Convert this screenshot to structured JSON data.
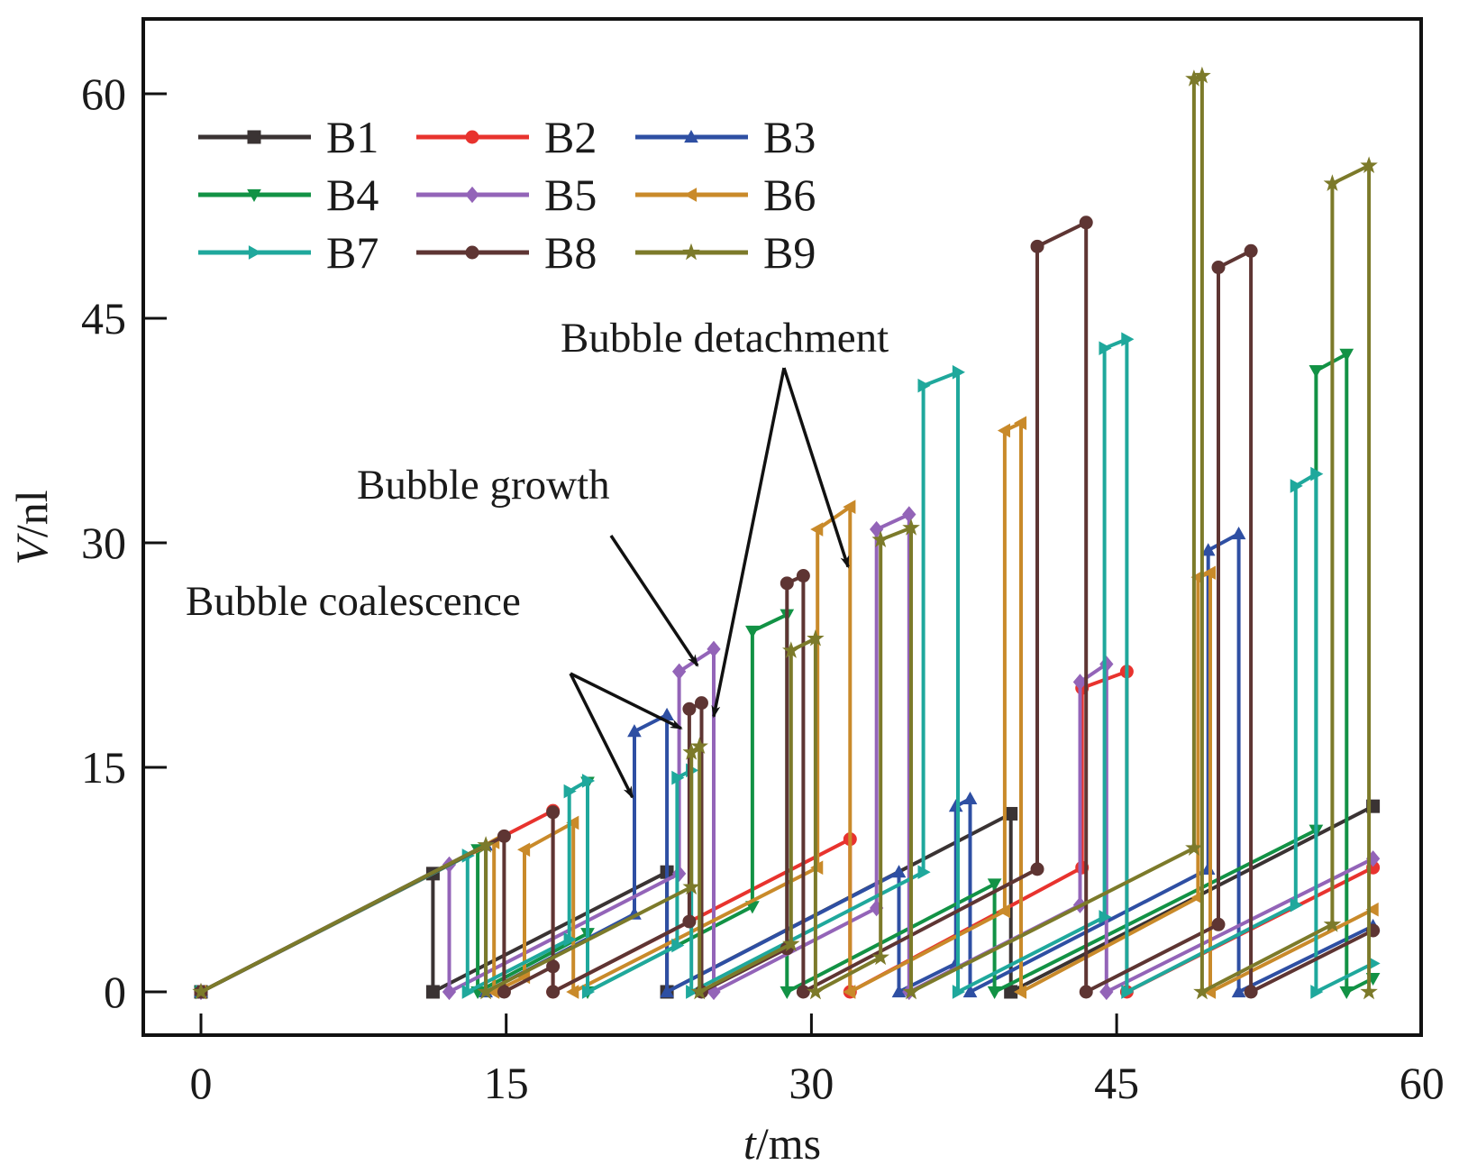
{
  "chart_data": {
    "type": "line",
    "title": "",
    "xlabel": "t/ms",
    "xlabel_parts": {
      "italic": "t",
      "rest": "/ms"
    },
    "ylabel": "V/nl",
    "ylabel_parts": {
      "italic": "V",
      "rest": "/nl"
    },
    "xlim": [
      -3,
      60
    ],
    "ylim": [
      -3,
      65
    ],
    "xticks": [
      0,
      15,
      30,
      45,
      60
    ],
    "yticks": [
      0,
      15,
      30,
      45,
      60
    ],
    "grid": false,
    "legend": {
      "placement": "top-left",
      "columns": 3
    },
    "series": [
      {
        "name": "B1",
        "color": "#3a3333",
        "marker": "square",
        "points": [
          [
            0,
            0
          ],
          [
            11.4,
            7.9
          ],
          [
            11.4,
            0
          ],
          [
            22.9,
            8.0
          ],
          [
            22.9,
            0
          ],
          [
            39.8,
            11.9
          ],
          [
            39.8,
            0
          ],
          [
            57.6,
            12.4
          ]
        ]
      },
      {
        "name": "B2",
        "color": "#e8332e",
        "marker": "circle",
        "points": [
          [
            0,
            0
          ],
          [
            17.3,
            12.1
          ],
          [
            17.3,
            0
          ],
          [
            31.9,
            10.2
          ],
          [
            31.9,
            0
          ],
          [
            43.3,
            8.3
          ],
          [
            43.3,
            20.3
          ],
          [
            45.5,
            21.4
          ],
          [
            45.5,
            0
          ],
          [
            57.6,
            8.3
          ]
        ]
      },
      {
        "name": "B3",
        "color": "#2e4fa3",
        "marker": "triangle-up",
        "points": [
          [
            0,
            0
          ],
          [
            14.0,
            9.8
          ],
          [
            14.0,
            0
          ],
          [
            21.3,
            5.2
          ],
          [
            21.3,
            17.4
          ],
          [
            22.9,
            18.5
          ],
          [
            22.9,
            0
          ],
          [
            34.3,
            8.0
          ],
          [
            34.3,
            0
          ],
          [
            37.1,
            1.9
          ],
          [
            37.1,
            12.4
          ],
          [
            37.8,
            12.9
          ],
          [
            37.8,
            0
          ],
          [
            49.5,
            8.2
          ],
          [
            49.5,
            29.5
          ],
          [
            51.0,
            30.6
          ],
          [
            51.0,
            0
          ],
          [
            57.6,
            4.4
          ]
        ]
      },
      {
        "name": "B4",
        "color": "#129245",
        "marker": "triangle-down",
        "points": [
          [
            0,
            0
          ],
          [
            13.6,
            9.5
          ],
          [
            13.6,
            0
          ],
          [
            19.0,
            3.9
          ],
          [
            19.0,
            14.0
          ],
          [
            19.0,
            0
          ],
          [
            27.1,
            5.7
          ],
          [
            27.1,
            24.1
          ],
          [
            28.8,
            25.2
          ],
          [
            28.8,
            0
          ],
          [
            39.0,
            7.2
          ],
          [
            39.0,
            0
          ],
          [
            54.8,
            10.8
          ],
          [
            54.8,
            41.5
          ],
          [
            56.3,
            42.6
          ],
          [
            56.3,
            0
          ],
          [
            57.6,
            0.9
          ]
        ]
      },
      {
        "name": "B5",
        "color": "#9364b8",
        "marker": "diamond",
        "points": [
          [
            0,
            0
          ],
          [
            12.2,
            8.5
          ],
          [
            12.2,
            0
          ],
          [
            23.5,
            7.9
          ],
          [
            23.5,
            21.4
          ],
          [
            25.2,
            22.9
          ],
          [
            25.2,
            0
          ],
          [
            33.2,
            5.6
          ],
          [
            33.2,
            30.9
          ],
          [
            34.8,
            31.9
          ],
          [
            34.8,
            0
          ],
          [
            43.2,
            5.8
          ],
          [
            43.2,
            20.7
          ],
          [
            44.5,
            21.9
          ],
          [
            44.5,
            0
          ],
          [
            57.6,
            8.9
          ]
        ]
      },
      {
        "name": "B6",
        "color": "#c98a2a",
        "marker": "left-triangle",
        "points": [
          [
            0,
            0
          ],
          [
            14.4,
            10.0
          ],
          [
            14.4,
            0
          ],
          [
            15.9,
            1.0
          ],
          [
            15.9,
            9.5
          ],
          [
            18.3,
            11.3
          ],
          [
            18.3,
            0
          ],
          [
            30.3,
            8.3
          ],
          [
            30.3,
            30.9
          ],
          [
            31.9,
            32.4
          ],
          [
            31.9,
            0
          ],
          [
            39.5,
            5.4
          ],
          [
            39.5,
            37.5
          ],
          [
            40.3,
            38.0
          ],
          [
            40.3,
            0
          ],
          [
            49.0,
            6.3
          ],
          [
            49.0,
            27.7
          ],
          [
            49.6,
            28.0
          ],
          [
            49.6,
            0
          ],
          [
            57.6,
            5.5
          ]
        ]
      },
      {
        "name": "B7",
        "color": "#1fa89c",
        "marker": "right-triangle",
        "points": [
          [
            0,
            0
          ],
          [
            13.1,
            9.1
          ],
          [
            13.1,
            0
          ],
          [
            18.1,
            3.5
          ],
          [
            18.1,
            13.4
          ],
          [
            19.0,
            14.1
          ],
          [
            19.0,
            0
          ],
          [
            23.4,
            3.1
          ],
          [
            23.4,
            14.3
          ],
          [
            24.1,
            14.8
          ],
          [
            24.1,
            0
          ],
          [
            35.5,
            8.0
          ],
          [
            35.5,
            40.5
          ],
          [
            37.2,
            41.4
          ],
          [
            37.2,
            0
          ],
          [
            44.4,
            5.0
          ],
          [
            44.4,
            43.0
          ],
          [
            45.5,
            43.6
          ],
          [
            45.5,
            0
          ],
          [
            53.8,
            5.8
          ],
          [
            53.8,
            33.8
          ],
          [
            54.8,
            34.6
          ],
          [
            54.8,
            0
          ],
          [
            57.6,
            1.9
          ]
        ]
      },
      {
        "name": "B8",
        "color": "#5e3533",
        "marker": "circle",
        "points": [
          [
            0,
            0
          ],
          [
            14.9,
            10.4
          ],
          [
            14.9,
            0
          ],
          [
            17.3,
            1.7
          ],
          [
            17.3,
            12.0
          ],
          [
            17.3,
            0
          ],
          [
            24.0,
            4.7
          ],
          [
            24.0,
            18.9
          ],
          [
            24.6,
            19.3
          ],
          [
            24.6,
            0
          ],
          [
            28.8,
            2.9
          ],
          [
            28.8,
            27.3
          ],
          [
            29.6,
            27.8
          ],
          [
            29.6,
            0
          ],
          [
            41.1,
            8.2
          ],
          [
            41.1,
            49.8
          ],
          [
            43.5,
            51.4
          ],
          [
            43.5,
            0
          ],
          [
            50.0,
            4.5
          ],
          [
            50.0,
            48.4
          ],
          [
            51.6,
            49.5
          ],
          [
            51.6,
            0
          ],
          [
            57.6,
            4.1
          ]
        ]
      },
      {
        "name": "B9",
        "color": "#7c7a2a",
        "marker": "star",
        "points": [
          [
            0,
            0
          ],
          [
            14.0,
            9.8
          ],
          [
            14.0,
            0
          ],
          [
            24.1,
            7.0
          ],
          [
            24.1,
            16.0
          ],
          [
            24.5,
            16.4
          ],
          [
            24.5,
            0
          ],
          [
            29.0,
            3.2
          ],
          [
            29.0,
            22.8
          ],
          [
            30.2,
            23.6
          ],
          [
            30.2,
            0
          ],
          [
            33.4,
            2.3
          ],
          [
            33.4,
            30.2
          ],
          [
            34.9,
            31.0
          ],
          [
            34.9,
            0
          ],
          [
            48.8,
            9.6
          ],
          [
            48.8,
            61.0
          ],
          [
            49.2,
            61.2
          ],
          [
            49.2,
            0
          ],
          [
            55.6,
            4.5
          ],
          [
            55.6,
            54.0
          ],
          [
            57.4,
            55.2
          ],
          [
            57.4,
            0
          ]
        ]
      }
    ],
    "annotations": [
      {
        "text": "Bubble coalescence",
        "targets": [
          [
            21.2,
            13.0
          ],
          [
            23.6,
            17.6
          ]
        ]
      },
      {
        "text": "Bubble growth",
        "targets": [
          [
            24.4,
            21.8
          ]
        ]
      },
      {
        "text": "Bubble detachment",
        "targets": [
          [
            25.2,
            18.4
          ],
          [
            31.8,
            28.4
          ]
        ]
      }
    ]
  }
}
